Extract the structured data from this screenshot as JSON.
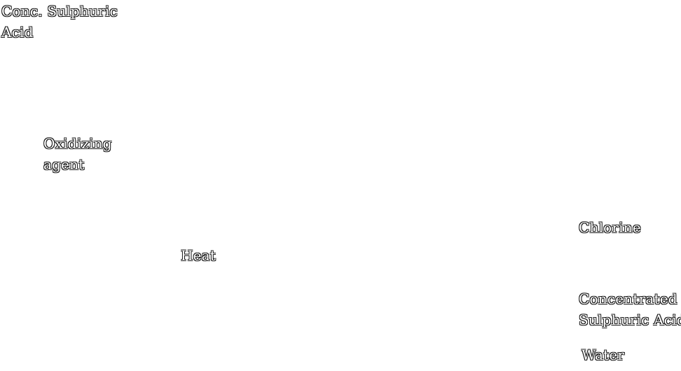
{
  "labels": {
    "conc_sulphuric_acid": {
      "line1": "Conc. Sulphuric",
      "line2": "Acid"
    },
    "oxidizing_agent": {
      "line1": "Oxidizing",
      "line2": "agent"
    },
    "heat": "Heat",
    "chlorine": "Chlorine",
    "concentrated_sulphuric_acid": {
      "line1": "Concentrated",
      "line2": "Sulphuric Acid"
    },
    "water": "Water"
  },
  "colors": {
    "background": "#ffffff",
    "text_outline": "#1a1a1a",
    "text_fill": "#ffffff"
  }
}
